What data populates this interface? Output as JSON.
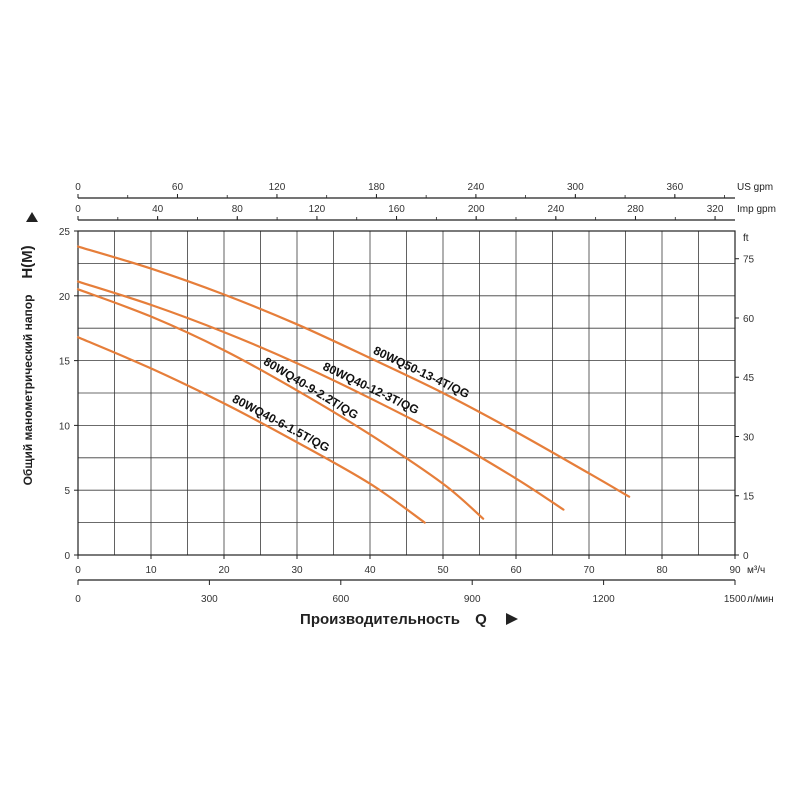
{
  "chart_data": {
    "type": "line",
    "ylabel": "Общий манометрический напор",
    "ylabel_symbol": "H(M)",
    "xlabel": "Производительность",
    "xlabel_symbol": "Q",
    "ylim": [
      0,
      25
    ],
    "y_ticks": [
      0,
      5,
      10,
      15,
      20,
      25
    ],
    "ft_axis": {
      "unit": "ft",
      "range": [
        0,
        82.02
      ],
      "ticks": [
        0,
        15,
        30,
        45,
        60,
        75
      ]
    },
    "xlim": [
      0,
      90
    ],
    "x_ticks": [
      0,
      10,
      20,
      30,
      40,
      50,
      60,
      70,
      80,
      90
    ],
    "x_unit": "м³/ч",
    "lmin_axis": {
      "unit": "л/мин",
      "range": [
        0,
        1500
      ],
      "ticks": [
        0,
        300,
        600,
        900,
        1200,
        1500
      ]
    },
    "us_gpm_axis": {
      "unit": "US gpm",
      "range": [
        0,
        396.3
      ],
      "ticks": [
        0,
        60,
        120,
        180,
        240,
        300,
        360
      ]
    },
    "imp_gpm_axis": {
      "unit": "Imp gpm",
      "range": [
        0,
        330
      ],
      "ticks": [
        0,
        40,
        80,
        120,
        160,
        200,
        240,
        280,
        320
      ]
    },
    "grid": true,
    "line_color": "#e67e3a",
    "series": [
      {
        "name": "80WQ50-13-4T/QG",
        "x": [
          0,
          10,
          20,
          30,
          40,
          50,
          60,
          70,
          75.5
        ],
        "y": [
          23.8,
          22.1,
          20.1,
          17.8,
          15.2,
          12.5,
          9.5,
          6.3,
          4.5
        ]
      },
      {
        "name": "80WQ40-12-3T/QG",
        "x": [
          0,
          10,
          20,
          30,
          40,
          50,
          60,
          66.5
        ],
        "y": [
          21.1,
          19.3,
          17.2,
          14.8,
          12.1,
          9.2,
          5.9,
          3.5
        ]
      },
      {
        "name": "80WQ40-9-2.2T/QG",
        "x": [
          0,
          10,
          20,
          30,
          40,
          50,
          55.5
        ],
        "y": [
          20.5,
          18.4,
          15.8,
          12.7,
          9.3,
          5.5,
          2.8
        ]
      },
      {
        "name": "80WQ40-6-1.5T/QG",
        "x": [
          0,
          10,
          20,
          30,
          40,
          47.5
        ],
        "y": [
          16.8,
          14.4,
          11.7,
          8.7,
          5.5,
          2.5
        ]
      }
    ]
  }
}
